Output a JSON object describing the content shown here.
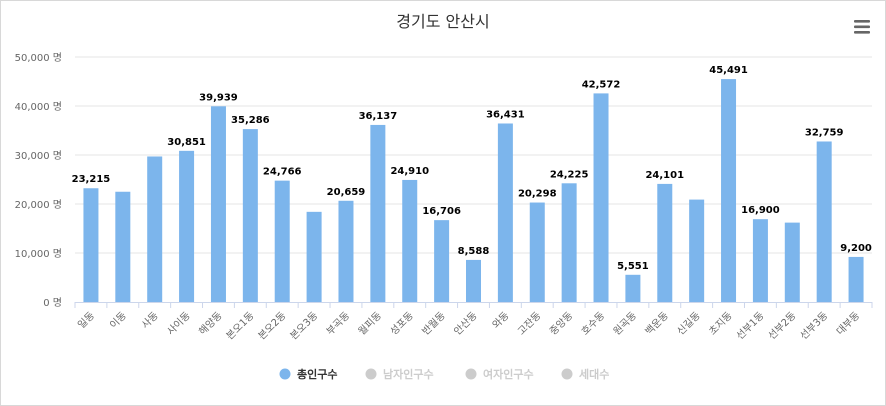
{
  "chart_data": {
    "type": "bar",
    "title": "경기도 안산시",
    "xlabel": "",
    "ylabel": "",
    "ylim": [
      0,
      50000
    ],
    "y_ticks": [
      {
        "value": 0,
        "label": "0 명"
      },
      {
        "value": 10000,
        "label": "10,000 명"
      },
      {
        "value": 20000,
        "label": "20,000 명"
      },
      {
        "value": 30000,
        "label": "30,000 명"
      },
      {
        "value": 40000,
        "label": "40,000 명"
      },
      {
        "value": 50000,
        "label": "50,000 명"
      }
    ],
    "grid": true,
    "legend_position": "bottom",
    "categories": [
      "일동",
      "이동",
      "사동",
      "사이동",
      "해양동",
      "본오1동",
      "본오2동",
      "본오3동",
      "부곡동",
      "월피동",
      "성포동",
      "반월동",
      "안산동",
      "와동",
      "고잔동",
      "중앙동",
      "호수동",
      "원곡동",
      "백운동",
      "신길동",
      "초지동",
      "선부1동",
      "선부2동",
      "선부3동",
      "대부동"
    ],
    "series": [
      {
        "name": "총인구수",
        "color": "#7cb5ec",
        "visible": true,
        "values": [
          23215,
          22500,
          29700,
          30851,
          39939,
          35286,
          24766,
          18400,
          20659,
          36137,
          24910,
          16706,
          8588,
          36431,
          20298,
          24225,
          42572,
          5551,
          24101,
          20900,
          45491,
          16900,
          16200,
          32759,
          9200
        ],
        "labels": [
          "23,215",
          "",
          "",
          "30,851",
          "39,939",
          "35,286",
          "24,766",
          "",
          "20,659",
          "36,137",
          "24,910",
          "16,706",
          "8,588",
          "36,431",
          "20,298",
          "24,225",
          "42,572",
          "5,551",
          "24,101",
          "",
          "45,491",
          "16,900",
          "",
          "32,759",
          "9,200"
        ]
      },
      {
        "name": "남자인구수",
        "color": "#cccccc",
        "visible": false
      },
      {
        "name": "여자인구수",
        "color": "#cccccc",
        "visible": false
      },
      {
        "name": "세대수",
        "color": "#cccccc",
        "visible": false
      }
    ],
    "menu_icon": "hamburger-menu-icon"
  }
}
